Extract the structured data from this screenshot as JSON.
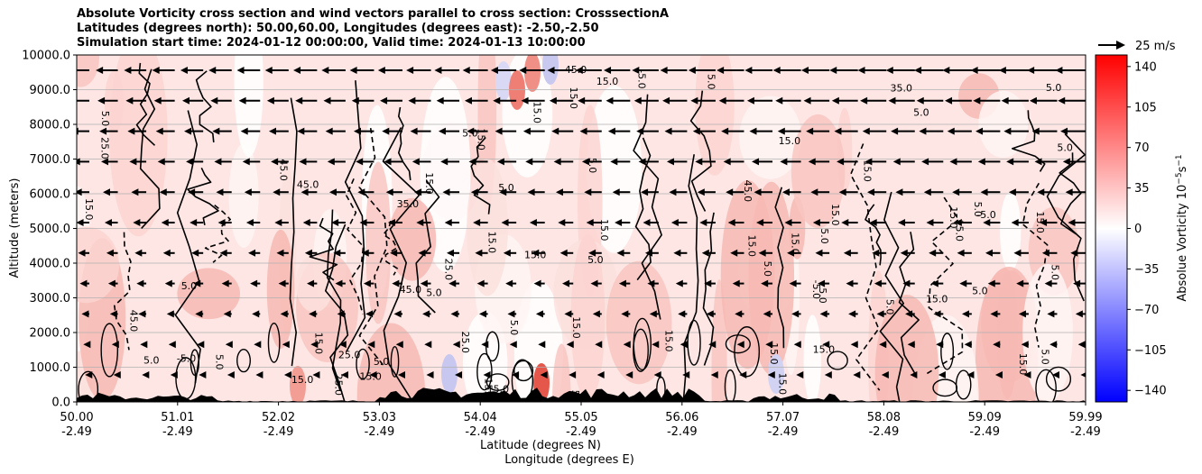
{
  "title": {
    "line1": "Absolute Vorticity cross section and wind vectors parallel to cross section: CrosssectionA",
    "line2": "Latitudes (degrees north): 50.00,60.00, Longitudes (degrees east): -2.50,-2.50",
    "line3": "Simulation start time: 2024-01-12 00:00:00, Valid time: 2024-01-13 10:00:00"
  },
  "quiver_key": "25 m/s",
  "chart_data": {
    "type": "heatmap",
    "xlabel_lat": "Latitude (degrees N)",
    "xlabel_lon": "Longitude (degrees E)",
    "ylabel": "Altitude (meters)",
    "ylim": [
      0,
      10000
    ],
    "xlim": [
      50.0,
      59.99
    ],
    "x_ticks_lat": [
      "50.00",
      "51.01",
      "52.02",
      "53.03",
      "54.04",
      "55.05",
      "56.06",
      "57.07",
      "58.08",
      "59.09",
      "59.99"
    ],
    "x_ticks_lon": [
      "-2.49",
      "-2.49",
      "-2.49",
      "-2.49",
      "-2.49",
      "-2.49",
      "-2.49",
      "-2.49",
      "-2.49",
      "-2.49",
      "-2.49"
    ],
    "y_ticks": [
      "0.0",
      "1000.0",
      "2000.0",
      "3000.0",
      "4000.0",
      "5000.0",
      "6000.0",
      "7000.0",
      "8000.0",
      "9000.0",
      "10000.0"
    ],
    "grid": "horizontal",
    "colorbar": {
      "label": "Absolue Vorticity 10",
      "label_exp": "−5",
      "label_unit": "s",
      "label_unit_exp": "−1",
      "ticks": [
        "140",
        "105",
        "70",
        "35",
        "0",
        "−35",
        "−70",
        "−105",
        "−140"
      ],
      "range": [
        -150,
        150
      ],
      "colors": {
        "min": "#0000ff",
        "mid": "#ffffff",
        "max": "#ff0000"
      }
    },
    "contour_labels": [
      "15.0",
      "5.0",
      "-5.0",
      "25.0",
      "35.0",
      "45.0"
    ],
    "wind_summary": "vectors point southward (toward 50N) increasing with altitude"
  }
}
